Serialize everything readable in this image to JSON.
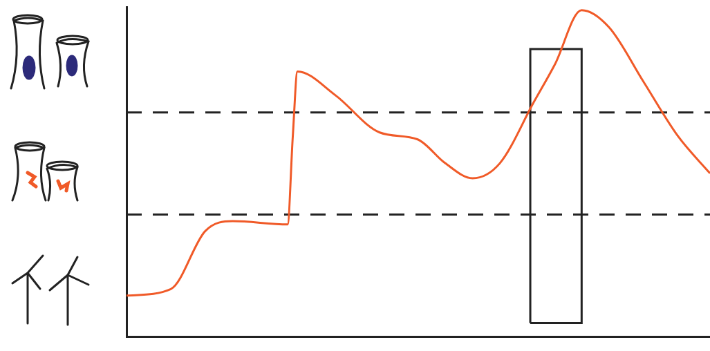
{
  "chart_data": {
    "type": "line",
    "xlim": [
      0,
      100
    ],
    "ylim": [
      0,
      100
    ],
    "grid": false,
    "tick_labels": false,
    "series": [
      {
        "color": "#f05a28",
        "line_style": "solid",
        "x": [
          0,
          7.6,
          13.5,
          18.2,
          27.6,
          28.5,
          29.3,
          35.8,
          43.4,
          49.9,
          54.6,
          59.3,
          64,
          69.8,
          73.4,
          78,
          82.7,
          88.6,
          94.5,
          100
        ],
        "values": [
          12.4,
          14.4,
          32,
          35,
          34,
          60.8,
          80.4,
          73.2,
          61.9,
          59.8,
          52.6,
          48,
          52.6,
          71.1,
          82.5,
          99,
          93.8,
          77.3,
          60.8,
          49.5
        ]
      },
      {
        "color": "#222222",
        "line_style": "dashed",
        "x": [
          0,
          100
        ],
        "values": [
          68,
          68
        ]
      },
      {
        "color": "#222222",
        "line_style": "dashed",
        "x": [
          0,
          100
        ],
        "values": [
          37,
          37
        ]
      },
      {
        "color": "#222222",
        "line_style": "solid",
        "x": [
          69.2,
          69.2,
          78,
          78,
          69.2
        ],
        "values": [
          4.1,
          87.2,
          87.2,
          4.1,
          4.1
        ]
      }
    ]
  }
}
